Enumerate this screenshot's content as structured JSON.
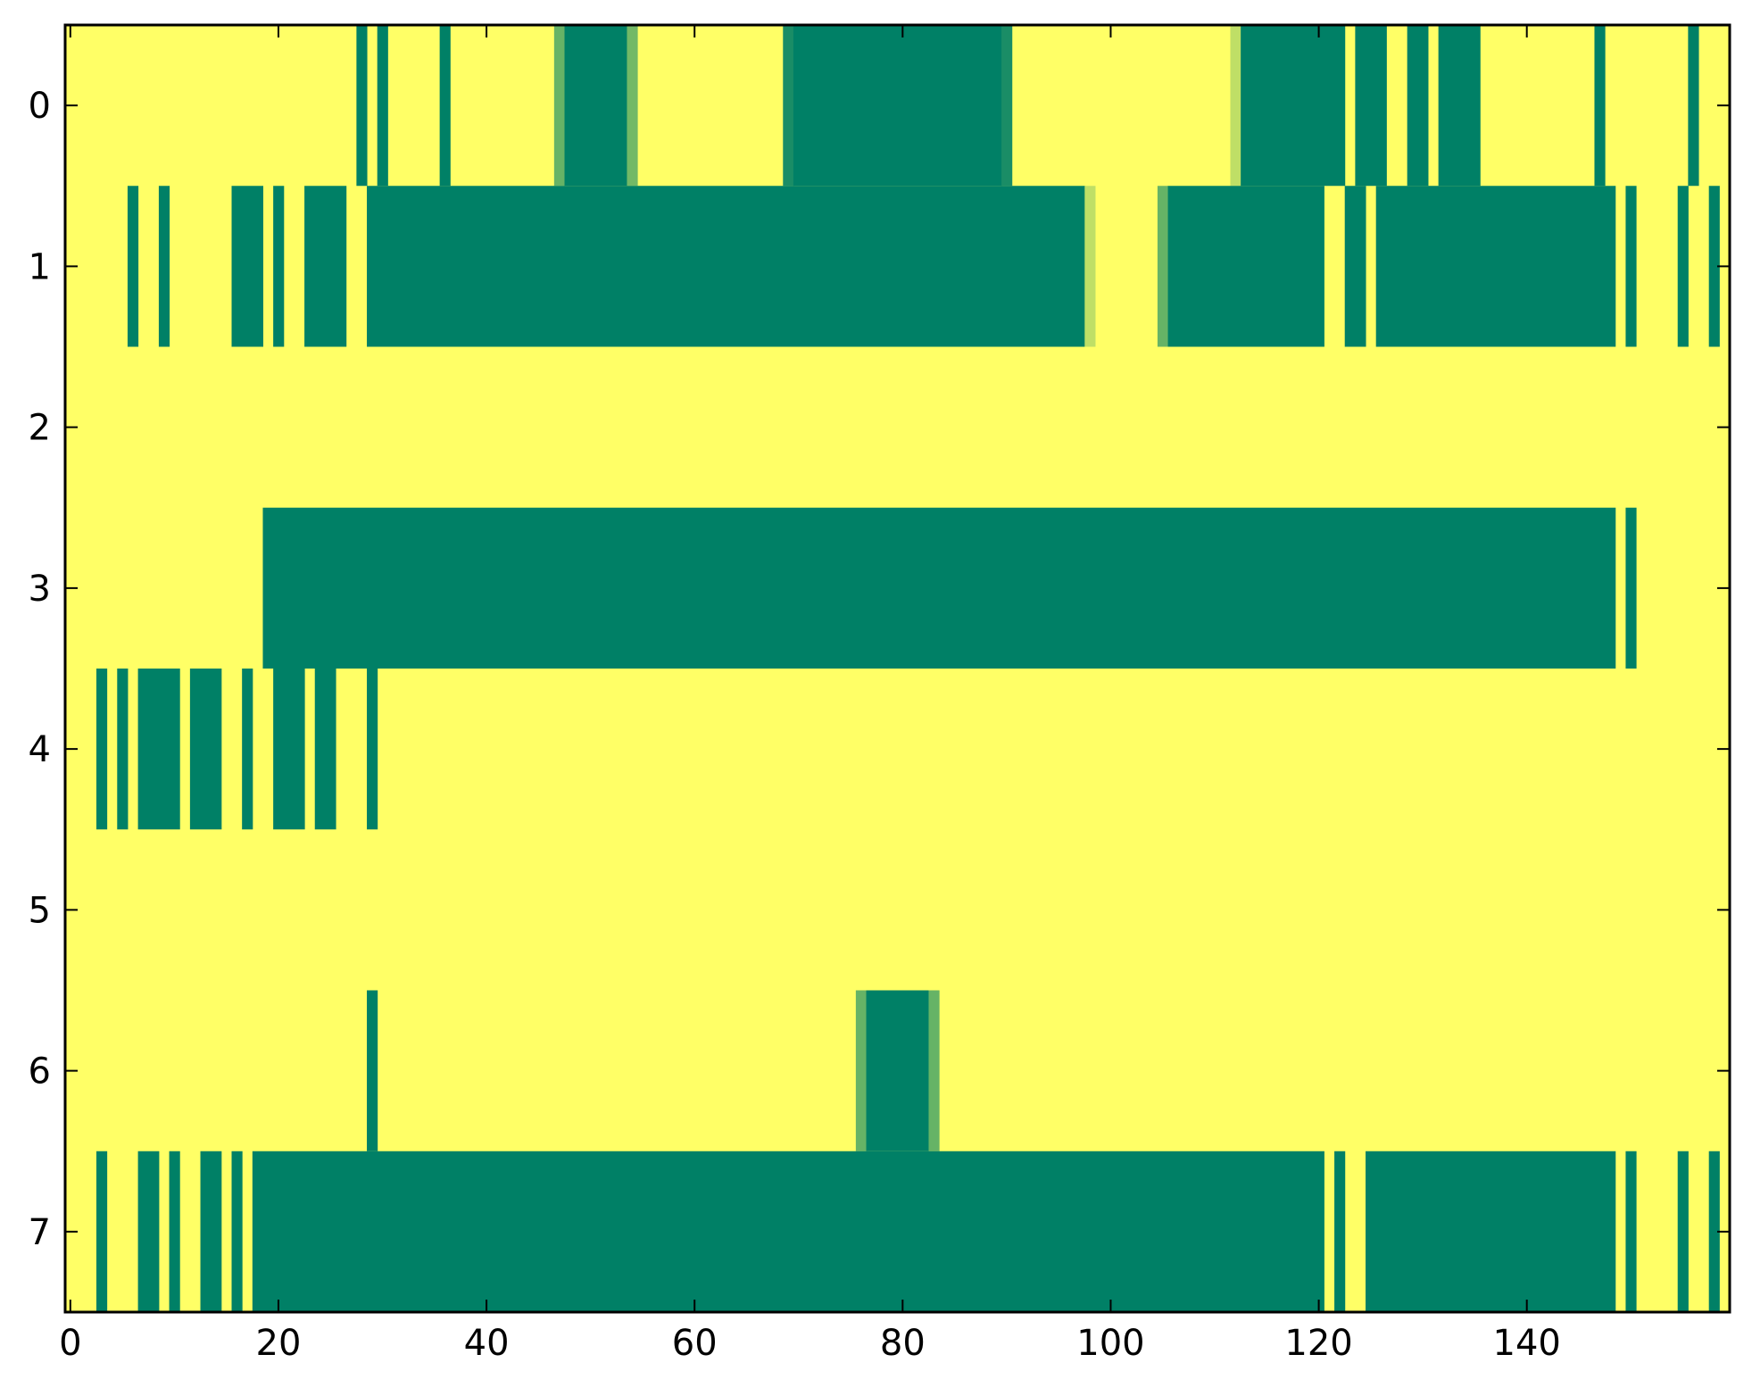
{
  "chart_data": {
    "type": "heatmap",
    "title": "",
    "xlabel": "",
    "ylabel": "",
    "xlim": [
      -0.5,
      159.5
    ],
    "ylim": [
      7.5,
      -0.5
    ],
    "x_ticks": [
      0,
      20,
      40,
      60,
      80,
      100,
      120,
      140
    ],
    "x_tick_labels": [
      "0",
      "20",
      "40",
      "60",
      "80",
      "100",
      "120",
      "140"
    ],
    "y_ticks": [
      0,
      1,
      2,
      3,
      4,
      5,
      6,
      7
    ],
    "y_tick_labels": [
      "0",
      "1",
      "2",
      "3",
      "4",
      "5",
      "6",
      "7"
    ],
    "grid": false,
    "n_columns": 160,
    "background_value": 0.0,
    "colormap": "summer_r",
    "colors": {
      "low": "#ffff66",
      "high": "#008066",
      "mid_light": "#c6e06b",
      "mid": "#6db764",
      "mid_dark": "#1b8a65"
    },
    "rows": [
      {
        "row": 0,
        "segments": [
          {
            "start": 28,
            "end": 28,
            "value": 1.0
          },
          {
            "start": 30,
            "end": 30,
            "value": 1.0
          },
          {
            "start": 36,
            "end": 36,
            "value": 1.0
          },
          {
            "start": 47,
            "end": 47,
            "value": 0.6
          },
          {
            "start": 48,
            "end": 53,
            "value": 1.0
          },
          {
            "start": 54,
            "end": 54,
            "value": 0.55
          },
          {
            "start": 69,
            "end": 69,
            "value": 0.9
          },
          {
            "start": 70,
            "end": 89,
            "value": 1.0
          },
          {
            "start": 90,
            "end": 90,
            "value": 0.9
          },
          {
            "start": 112,
            "end": 112,
            "value": 0.25
          },
          {
            "start": 113,
            "end": 122,
            "value": 1.0
          },
          {
            "start": 124,
            "end": 126,
            "value": 1.0
          },
          {
            "start": 129,
            "end": 130,
            "value": 1.0
          },
          {
            "start": 132,
            "end": 135,
            "value": 1.0
          },
          {
            "start": 147,
            "end": 147,
            "value": 1.0
          },
          {
            "start": 156,
            "end": 156,
            "value": 1.0
          }
        ]
      },
      {
        "row": 1,
        "segments": [
          {
            "start": 6,
            "end": 6,
            "value": 1.0
          },
          {
            "start": 9,
            "end": 9,
            "value": 1.0
          },
          {
            "start": 16,
            "end": 18,
            "value": 1.0
          },
          {
            "start": 20,
            "end": 20,
            "value": 1.0
          },
          {
            "start": 23,
            "end": 26,
            "value": 1.0
          },
          {
            "start": 29,
            "end": 97,
            "value": 1.0
          },
          {
            "start": 98,
            "end": 98,
            "value": 0.25
          },
          {
            "start": 105,
            "end": 105,
            "value": 0.6
          },
          {
            "start": 106,
            "end": 120,
            "value": 1.0
          },
          {
            "start": 123,
            "end": 124,
            "value": 1.0
          },
          {
            "start": 126,
            "end": 148,
            "value": 1.0
          },
          {
            "start": 150,
            "end": 150,
            "value": 1.0
          },
          {
            "start": 155,
            "end": 155,
            "value": 1.0
          },
          {
            "start": 158,
            "end": 158,
            "value": 1.0
          }
        ]
      },
      {
        "row": 2,
        "segments": []
      },
      {
        "row": 3,
        "segments": [
          {
            "start": 19,
            "end": 148,
            "value": 1.0
          },
          {
            "start": 150,
            "end": 150,
            "value": 1.0
          }
        ]
      },
      {
        "row": 4,
        "segments": [
          {
            "start": 3,
            "end": 3,
            "value": 1.0
          },
          {
            "start": 5,
            "end": 5,
            "value": 1.0
          },
          {
            "start": 7,
            "end": 10,
            "value": 1.0
          },
          {
            "start": 12,
            "end": 14,
            "value": 1.0
          },
          {
            "start": 17,
            "end": 17,
            "value": 1.0
          },
          {
            "start": 20,
            "end": 22,
            "value": 1.0
          },
          {
            "start": 24,
            "end": 25,
            "value": 1.0
          },
          {
            "start": 29,
            "end": 29,
            "value": 1.0
          }
        ]
      },
      {
        "row": 5,
        "segments": []
      },
      {
        "row": 6,
        "segments": [
          {
            "start": 29,
            "end": 29,
            "value": 1.0
          },
          {
            "start": 76,
            "end": 76,
            "value": 0.6
          },
          {
            "start": 77,
            "end": 82,
            "value": 1.0
          },
          {
            "start": 83,
            "end": 83,
            "value": 0.6
          }
        ]
      },
      {
        "row": 7,
        "segments": [
          {
            "start": 3,
            "end": 3,
            "value": 1.0
          },
          {
            "start": 7,
            "end": 8,
            "value": 1.0
          },
          {
            "start": 10,
            "end": 10,
            "value": 1.0
          },
          {
            "start": 13,
            "end": 14,
            "value": 1.0
          },
          {
            "start": 16,
            "end": 16,
            "value": 1.0
          },
          {
            "start": 18,
            "end": 120,
            "value": 1.0
          },
          {
            "start": 122,
            "end": 122,
            "value": 1.0
          },
          {
            "start": 125,
            "end": 148,
            "value": 1.0
          },
          {
            "start": 150,
            "end": 150,
            "value": 1.0
          },
          {
            "start": 155,
            "end": 155,
            "value": 1.0
          },
          {
            "start": 158,
            "end": 158,
            "value": 1.0
          }
        ]
      }
    ]
  }
}
